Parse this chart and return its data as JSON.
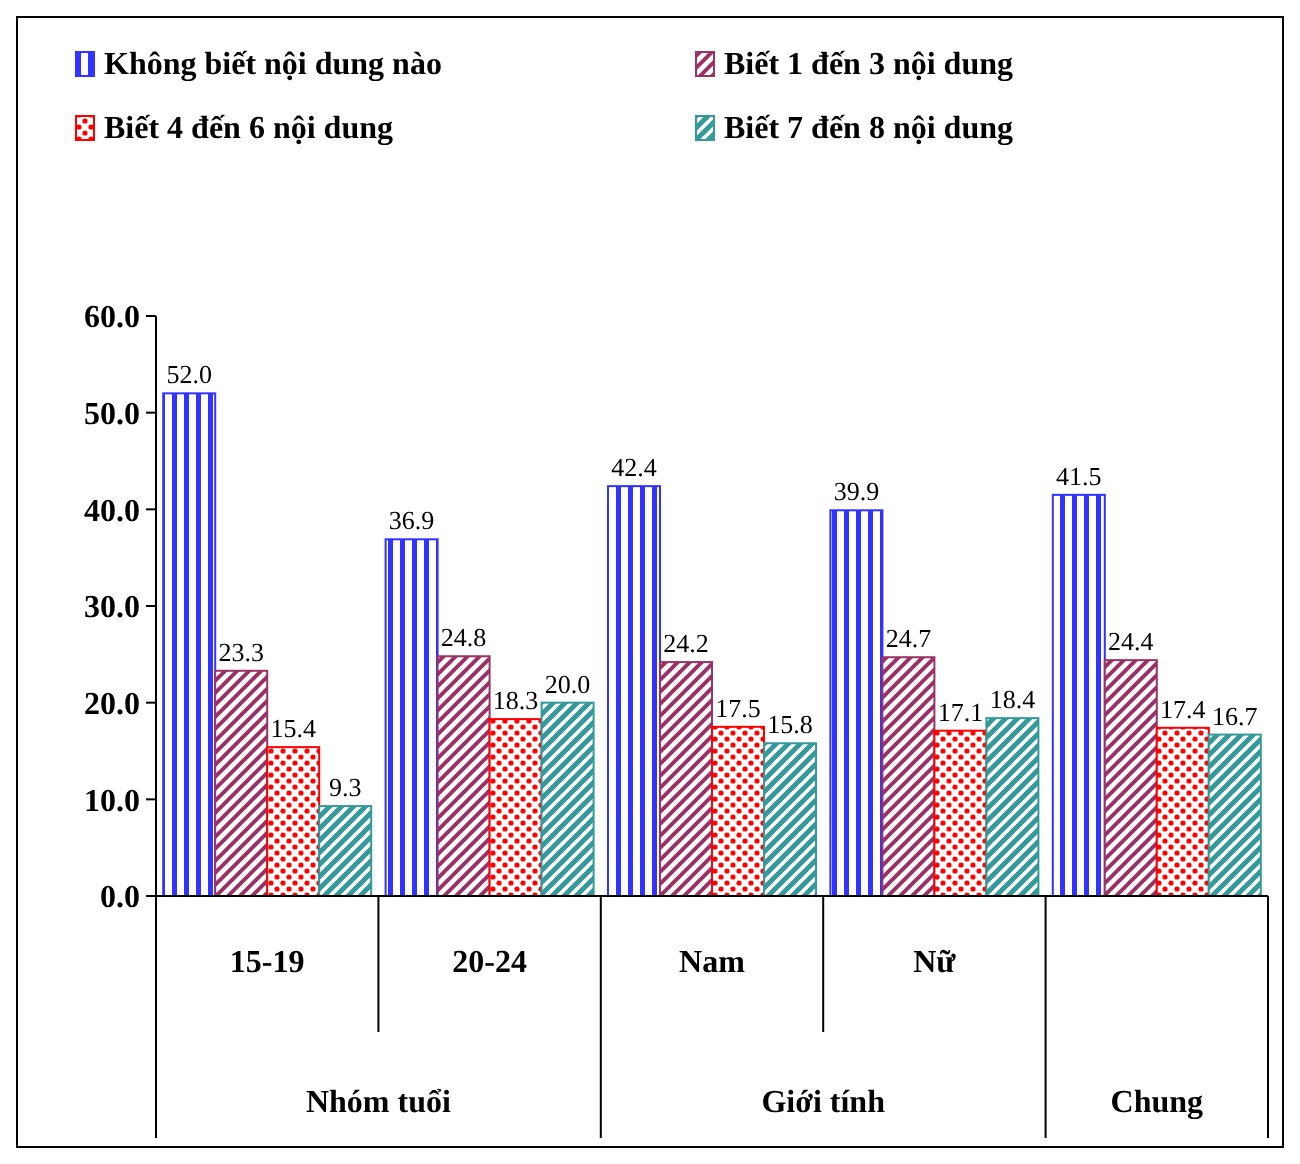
{
  "chart_data": {
    "type": "bar",
    "categories": [
      "15-19",
      "20-24",
      "Nam",
      "Nữ",
      null
    ],
    "series": [
      {
        "name": "Không biết nội dung nào",
        "color": "#3333ff",
        "values": [
          52.0,
          36.9,
          42.4,
          39.9,
          41.5
        ],
        "value_labels": [
          "52.0",
          "36.9",
          "42.4",
          "39.9",
          "41.5"
        ]
      },
      {
        "name": "Biết 1 đến 3 nội dung",
        "color": "#993366",
        "values": [
          23.3,
          24.8,
          24.2,
          24.7,
          24.4
        ],
        "value_labels": [
          "23.3",
          "24.8",
          "24.2",
          "24.7",
          "24.4"
        ]
      },
      {
        "name": "Biết 4 đến 6 nội dung",
        "color": "#ff0000",
        "values": [
          15.4,
          18.3,
          17.5,
          17.1,
          17.4
        ],
        "value_labels": [
          "15.4",
          "18.3",
          "17.5",
          "17.1",
          "17.4"
        ]
      },
      {
        "name": "Biết 7 đến 8 nội dung",
        "color": "#339999",
        "values": [
          9.3,
          20.0,
          15.8,
          18.4,
          16.7
        ],
        "value_labels": [
          "9.3",
          "20.0",
          "15.8",
          "18.4",
          "16.7"
        ]
      }
    ],
    "ylim": [
      0,
      60
    ],
    "yticks": [
      {
        "value": 0,
        "label": "0.0"
      },
      {
        "value": 10,
        "label": "10.0"
      },
      {
        "value": 20,
        "label": "20.0"
      },
      {
        "value": 30,
        "label": "30.0"
      },
      {
        "value": 40,
        "label": "40.0"
      },
      {
        "value": 50,
        "label": "50.0"
      },
      {
        "value": 60,
        "label": "60.0"
      }
    ],
    "annotations": [
      "Nhóm tuổi",
      "Giới tính",
      "Chung"
    ],
    "legend": "top",
    "grid": false
  }
}
